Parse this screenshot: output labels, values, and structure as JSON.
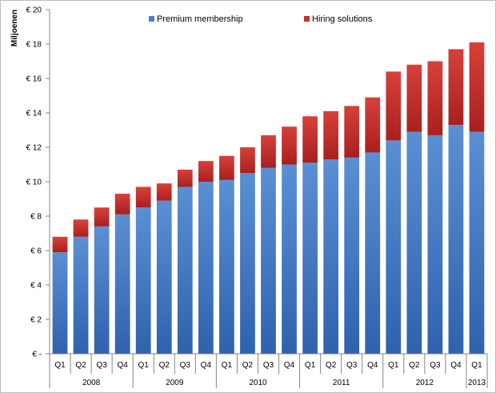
{
  "chart_data": {
    "type": "bar",
    "stacked": true,
    "ylabel": "Miljoenen",
    "ylim": [
      0,
      20
    ],
    "y_ticks": [
      {
        "value": 0,
        "label": "€ -"
      },
      {
        "value": 2,
        "label": "€ 2"
      },
      {
        "value": 4,
        "label": "€ 4"
      },
      {
        "value": 6,
        "label": "€ 6"
      },
      {
        "value": 8,
        "label": "€ 8"
      },
      {
        "value": 10,
        "label": "€ 10"
      },
      {
        "value": 12,
        "label": "€ 12"
      },
      {
        "value": 14,
        "label": "€ 14"
      },
      {
        "value": 16,
        "label": "€ 16"
      },
      {
        "value": 18,
        "label": "€ 18"
      },
      {
        "value": 20,
        "label": "€ 20"
      }
    ],
    "categories": [
      "Q1",
      "Q2",
      "Q3",
      "Q4",
      "Q1",
      "Q2",
      "Q3",
      "Q4",
      "Q1",
      "Q2",
      "Q3",
      "Q4",
      "Q1",
      "Q2",
      "Q3",
      "Q4",
      "Q1",
      "Q2",
      "Q3",
      "Q4",
      "Q1"
    ],
    "year_groups": [
      {
        "label": "2008",
        "count": 4
      },
      {
        "label": "2009",
        "count": 4
      },
      {
        "label": "2010",
        "count": 4
      },
      {
        "label": "2011",
        "count": 4
      },
      {
        "label": "2012",
        "count": 4
      },
      {
        "label": "2013",
        "count": 1
      }
    ],
    "series": [
      {
        "name": "Premium membership",
        "color": "#4a7ec7",
        "values": [
          5.9,
          6.8,
          7.4,
          8.1,
          8.5,
          8.9,
          9.7,
          10.0,
          10.1,
          10.5,
          10.8,
          11.0,
          11.1,
          11.3,
          11.4,
          11.7,
          12.4,
          12.9,
          12.7,
          13.3,
          12.9
        ]
      },
      {
        "name": "Hiring solutions",
        "color": "#c5302f",
        "values": [
          0.9,
          1.0,
          1.1,
          1.2,
          1.2,
          1.0,
          1.0,
          1.2,
          1.4,
          1.5,
          1.9,
          2.2,
          2.7,
          2.8,
          3.0,
          3.2,
          4.0,
          3.9,
          4.3,
          4.4,
          5.2
        ]
      }
    ],
    "legend_position": "top",
    "grid": false
  }
}
